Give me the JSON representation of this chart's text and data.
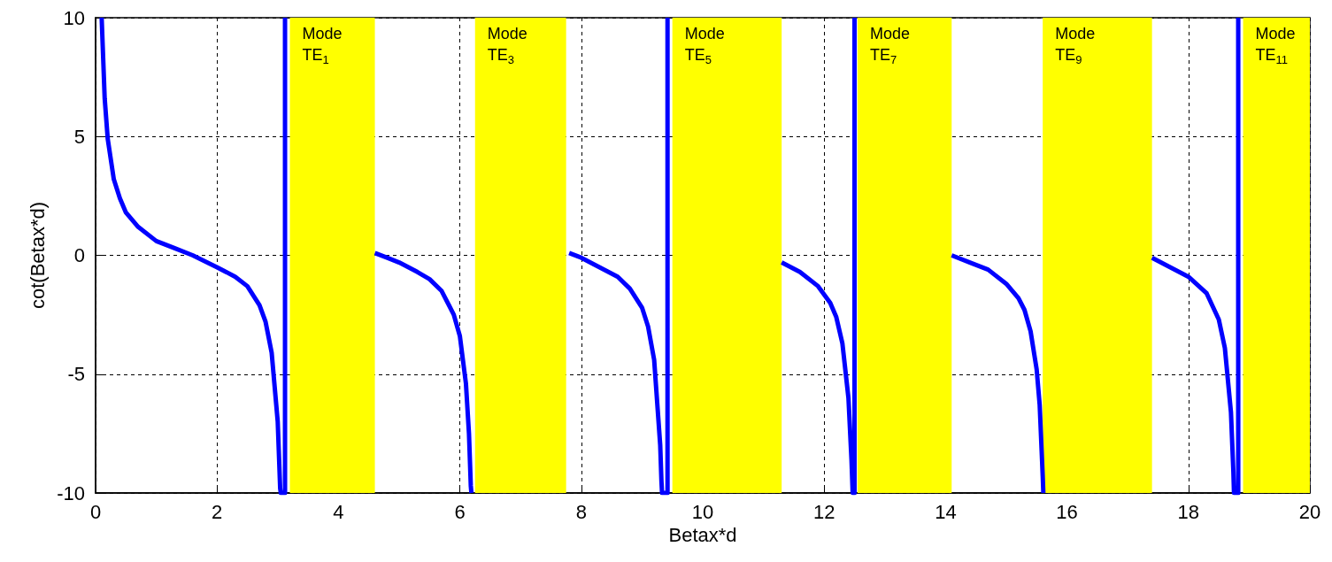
{
  "chart_data": {
    "type": "line",
    "xlabel": "Betax*d",
    "ylabel": "cot(Betax*d)",
    "xlim": [
      0,
      20
    ],
    "xticks": [
      0,
      2,
      4,
      6,
      8,
      10,
      12,
      14,
      16,
      18,
      20
    ],
    "ylim": [
      -10,
      10
    ],
    "yticks": [
      -10,
      -5,
      0,
      5,
      10
    ],
    "grid": true,
    "marker": "none",
    "line_style": "solid",
    "series": [
      {
        "color": "#0000ff",
        "x": [
          0.1,
          0.15,
          0.2,
          0.3,
          0.4,
          0.5,
          0.7,
          1.0,
          1.3,
          1.6,
          2.0,
          2.3,
          2.5,
          2.7,
          2.8,
          2.9,
          3.0,
          3.04,
          3.05,
          3.12,
          3.12,
          3.8,
          4.6,
          4.8,
          5.0,
          5.3,
          5.5,
          5.7,
          5.9,
          6.0,
          6.1,
          6.15,
          6.18,
          6.19,
          7.0,
          7.8,
          8.0,
          8.3,
          8.6,
          8.8,
          9.0,
          9.1,
          9.2,
          9.3,
          9.32,
          9.33,
          9.42,
          9.42,
          10.4,
          11.3,
          11.6,
          11.9,
          12.1,
          12.2,
          12.3,
          12.4,
          12.45,
          12.47,
          12.5,
          12.5,
          13.3,
          14.1,
          14.4,
          14.7,
          15.0,
          15.2,
          15.3,
          15.4,
          15.5,
          15.55,
          15.6,
          15.61,
          16.5,
          17.4,
          17.7,
          18.0,
          18.3,
          18.5,
          18.6,
          18.7,
          18.74,
          18.75,
          18.82,
          18.82
        ],
        "values": [
          10,
          6.6,
          4.9,
          3.2,
          2.4,
          1.8,
          1.2,
          0.6,
          0.3,
          0,
          -0.5,
          -0.9,
          -1.3,
          -2.1,
          -2.8,
          -4.1,
          -7,
          -9.8,
          -10,
          -10,
          10,
          null,
          0.1,
          -0.1,
          -0.3,
          -0.7,
          -1,
          -1.5,
          -2.5,
          -3.4,
          -5.4,
          -7.5,
          -9.7,
          -10,
          null,
          0.1,
          -0.1,
          -0.5,
          -0.9,
          -1.4,
          -2.2,
          -3,
          -4.4,
          -8,
          -9.5,
          -10,
          -10,
          10,
          null,
          -0.3,
          -0.7,
          -1.3,
          -2,
          -2.6,
          -3.7,
          -6,
          -8.6,
          -10,
          -10,
          10,
          null,
          0,
          -0.3,
          -0.6,
          -1.2,
          -1.8,
          -2.3,
          -3.2,
          -4.8,
          -6.3,
          -9.3,
          -10,
          null,
          -0.1,
          -0.5,
          -0.9,
          -1.6,
          -2.7,
          -3.9,
          -6.6,
          -9.1,
          -10,
          -10,
          10
        ]
      }
    ],
    "bands": [
      {
        "axis": "x",
        "from": 3.2,
        "to": 4.6,
        "label": "Mode\nTE$_{1}$",
        "color": "#ffff00"
      },
      {
        "axis": "x",
        "from": 6.25,
        "to": 7.75,
        "label": "Mode\nTE$_{3}$",
        "color": "#ffff00"
      },
      {
        "axis": "x",
        "from": 9.5,
        "to": 11.3,
        "label": "Mode\nTE$_{5}$",
        "color": "#ffff00"
      },
      {
        "axis": "x",
        "from": 12.55,
        "to": 14.1,
        "label": "Mode\nTE$_{7}$",
        "color": "#ffff00"
      },
      {
        "axis": "x",
        "from": 15.6,
        "to": 17.4,
        "label": "Mode\nTE$_{9}$",
        "color": "#ffff00"
      },
      {
        "axis": "x",
        "from": 18.9,
        "to": 20,
        "label": "Mode\nTE$_{11}$",
        "color": "#ffff00"
      }
    ]
  }
}
